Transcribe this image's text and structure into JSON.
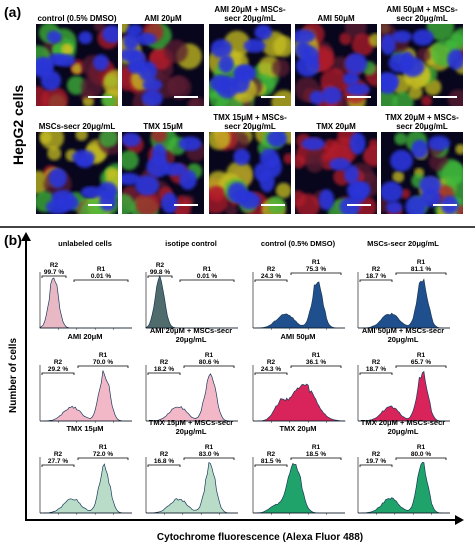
{
  "panel_a": {
    "letter": "(a)",
    "row_label": "HepG2 cells",
    "images": [
      {
        "title": "control (0.5% DMSO)",
        "blue": "#2b34d8",
        "red": 0.45,
        "green": 0.55
      },
      {
        "title": "AMI 20μM",
        "blue": "#2b34d8",
        "red": 0.55,
        "green": 0.35
      },
      {
        "title": "AMI 20μM + MSCs-secr 20μg/mL",
        "blue": "#2b34d8",
        "red": 0.5,
        "green": 0.7
      },
      {
        "title": "AMI 50μM",
        "blue": "#2b34d8",
        "red": 0.65,
        "green": 0.2
      },
      {
        "title": "AMI 50μM + MSCs-secr 20μg/mL",
        "blue": "#2b34d8",
        "red": 0.35,
        "green": 0.75
      },
      {
        "title": "MSCs-secr 20μg/mL",
        "blue": "#2b34d8",
        "red": 0.5,
        "green": 0.7
      },
      {
        "title": "TMX 15μM",
        "blue": "#2b34d8",
        "red": 0.6,
        "green": 0.3
      },
      {
        "title": "TMX 15μM + MSCs-secr 20μg/mL",
        "blue": "#2b34d8",
        "red": 0.5,
        "green": 0.65
      },
      {
        "title": "TMX 20μM",
        "blue": "#2b34d8",
        "red": 0.7,
        "green": 0.15
      },
      {
        "title": "TMX 20μM + MSCs-secr 20μg/mL",
        "blue": "#2b34d8",
        "red": 0.35,
        "green": 0.75
      }
    ]
  },
  "panel_b": {
    "letter": "(b)",
    "y_axis_label": "Number of cells",
    "x_axis_label": "Cytochrome fluorescence (Alexa Fluor 488)",
    "histograms": [
      {
        "title": "unlabeled cells",
        "fill": "#e8b9c4",
        "r2_label": "R2",
        "r2": "99.7 %",
        "r1_label": "R1",
        "r1": "0.01 %",
        "shape": "left"
      },
      {
        "title": "isotipe control",
        "fill": "#4f6b6b",
        "r2_label": "R2",
        "r2": "99.8 %",
        "r1_label": "R1",
        "r1": "0.01 %",
        "shape": "left"
      },
      {
        "title": "control (0.5% DMSO)",
        "fill": "#1f4f8c",
        "r2_label": "R2",
        "r2": "24.3 %",
        "r1_label": "R1",
        "r1": "75.3 %",
        "shape": "right"
      },
      {
        "title": "MSCs-secr 20μg/mL",
        "fill": "#1f4f8c",
        "r2_label": "R2",
        "r2": "18.7 %",
        "r1_label": "R1",
        "r1": "81.1 %",
        "shape": "right"
      },
      {
        "title": "AMI 20μM",
        "fill": "#f2b8c8",
        "r2_label": "R2",
        "r2": "29.2 %",
        "r1_label": "R1",
        "r1": "70.0 %",
        "shape": "right"
      },
      {
        "title": "AMI 20μM + MSCs-secr 20μg/mL",
        "fill": "#f2b8c8",
        "r2_label": "R2",
        "r2": "18.2 %",
        "r1_label": "R1",
        "r1": "80.6 %",
        "shape": "right"
      },
      {
        "title": "AMI 50μM",
        "fill": "#d8245a",
        "r2_label": "R2",
        "r2": "24.3 %",
        "r1_label": "R1",
        "r1": "36.1 %",
        "shape": "broad"
      },
      {
        "title": "AMI 50μM + MSCs-secr 20μg/mL",
        "fill": "#d8245a",
        "r2_label": "R2",
        "r2": "18.7 %",
        "r1_label": "R1",
        "r1": "65.7 %",
        "shape": "right"
      },
      {
        "title": "TMX 15μM",
        "fill": "#b8dcc8",
        "r2_label": "R2",
        "r2": "27.7 %",
        "r1_label": "R1",
        "r1": "72.0 %",
        "shape": "right"
      },
      {
        "title": "TMX 15μM + MSCs-secr 20μg/mL",
        "fill": "#b8dcc8",
        "r2_label": "R2",
        "r2": "16.8 %",
        "r1_label": "R1",
        "r1": "83.0 %",
        "shape": "right"
      },
      {
        "title": "TMX 20μM",
        "fill": "#1fa36b",
        "r2_label": "R2",
        "r2": "81.5 %",
        "r1_label": "R1",
        "r1": "18.5 %",
        "shape": "left-mid"
      },
      {
        "title": "TMX 20μM + MSCs-secr 20μg/mL",
        "fill": "#1fa36b",
        "r2_label": "R2",
        "r2": "19.7 %",
        "r1_label": "R1",
        "r1": "80.0 %",
        "shape": "right"
      }
    ]
  }
}
